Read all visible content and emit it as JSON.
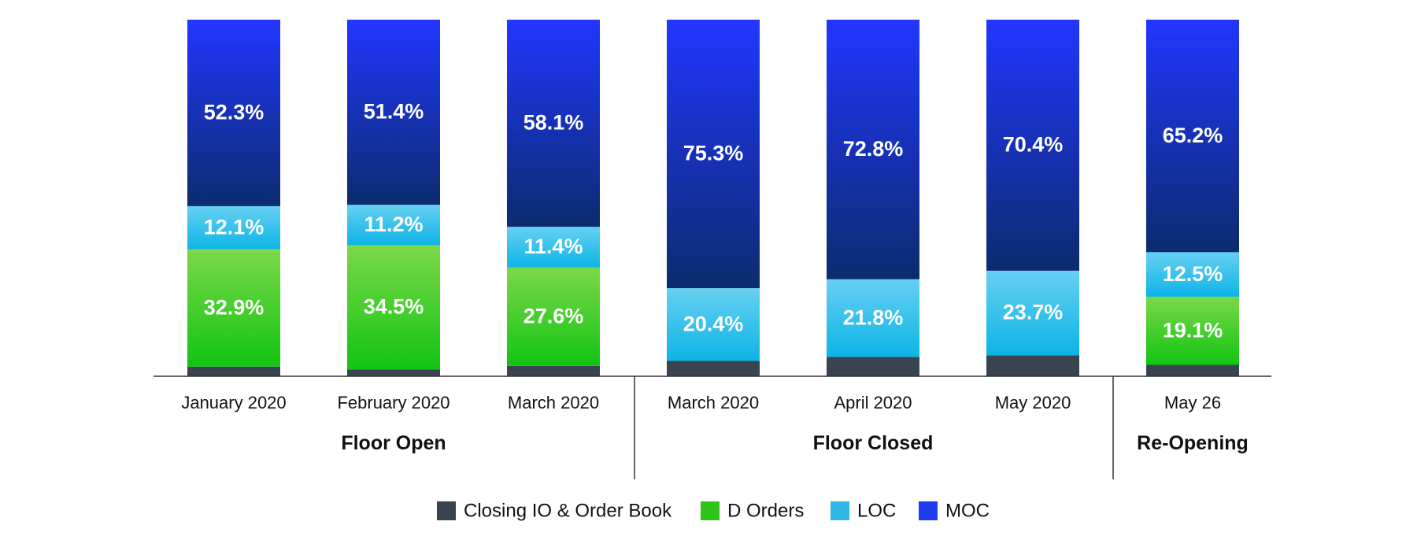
{
  "chart_data": {
    "type": "bar",
    "stacked": true,
    "ylim": [
      0,
      100
    ],
    "grid": false,
    "legend_position": "bottom",
    "categories": [
      "January 2020",
      "February 2020",
      "March 2020",
      "March 2020",
      "April 2020",
      "May 2020",
      "May 26"
    ],
    "groups": [
      {
        "label": "Floor Open",
        "categories": [
          0,
          1,
          2
        ]
      },
      {
        "label": "Floor Closed",
        "categories": [
          3,
          4,
          5
        ]
      },
      {
        "label": "Re-Opening",
        "categories": [
          6
        ]
      }
    ],
    "series": [
      {
        "name": "Closing IO & Order Book",
        "color": "#3a4451",
        "values": [
          2.7,
          1.9,
          2.9,
          4.3,
          5.4,
          5.9,
          3.2
        ],
        "labels": [
          "",
          "",
          "",
          "",
          "",
          "",
          ""
        ]
      },
      {
        "name": "D Orders",
        "color": "#2ec41a",
        "values": [
          32.9,
          34.5,
          27.6,
          0,
          0,
          0,
          19.1
        ],
        "labels": [
          "32.9%",
          "34.5%",
          "27.6%",
          "",
          "",
          "",
          "19.1%"
        ]
      },
      {
        "name": "LOC",
        "color": "#2fb8e6",
        "values": [
          12.1,
          11.2,
          11.4,
          20.4,
          21.8,
          23.7,
          12.5
        ],
        "labels": [
          "12.1%",
          "11.2%",
          "11.4%",
          "20.4%",
          "21.8%",
          "23.7%",
          "12.5%"
        ]
      },
      {
        "name": "MOC",
        "color": "#1e3cf0",
        "values": [
          52.3,
          51.4,
          58.1,
          75.3,
          72.8,
          70.4,
          65.2
        ],
        "labels": [
          "52.3%",
          "51.4%",
          "58.1%",
          "75.3%",
          "72.8%",
          "70.4%",
          "65.2%"
        ]
      }
    ]
  }
}
